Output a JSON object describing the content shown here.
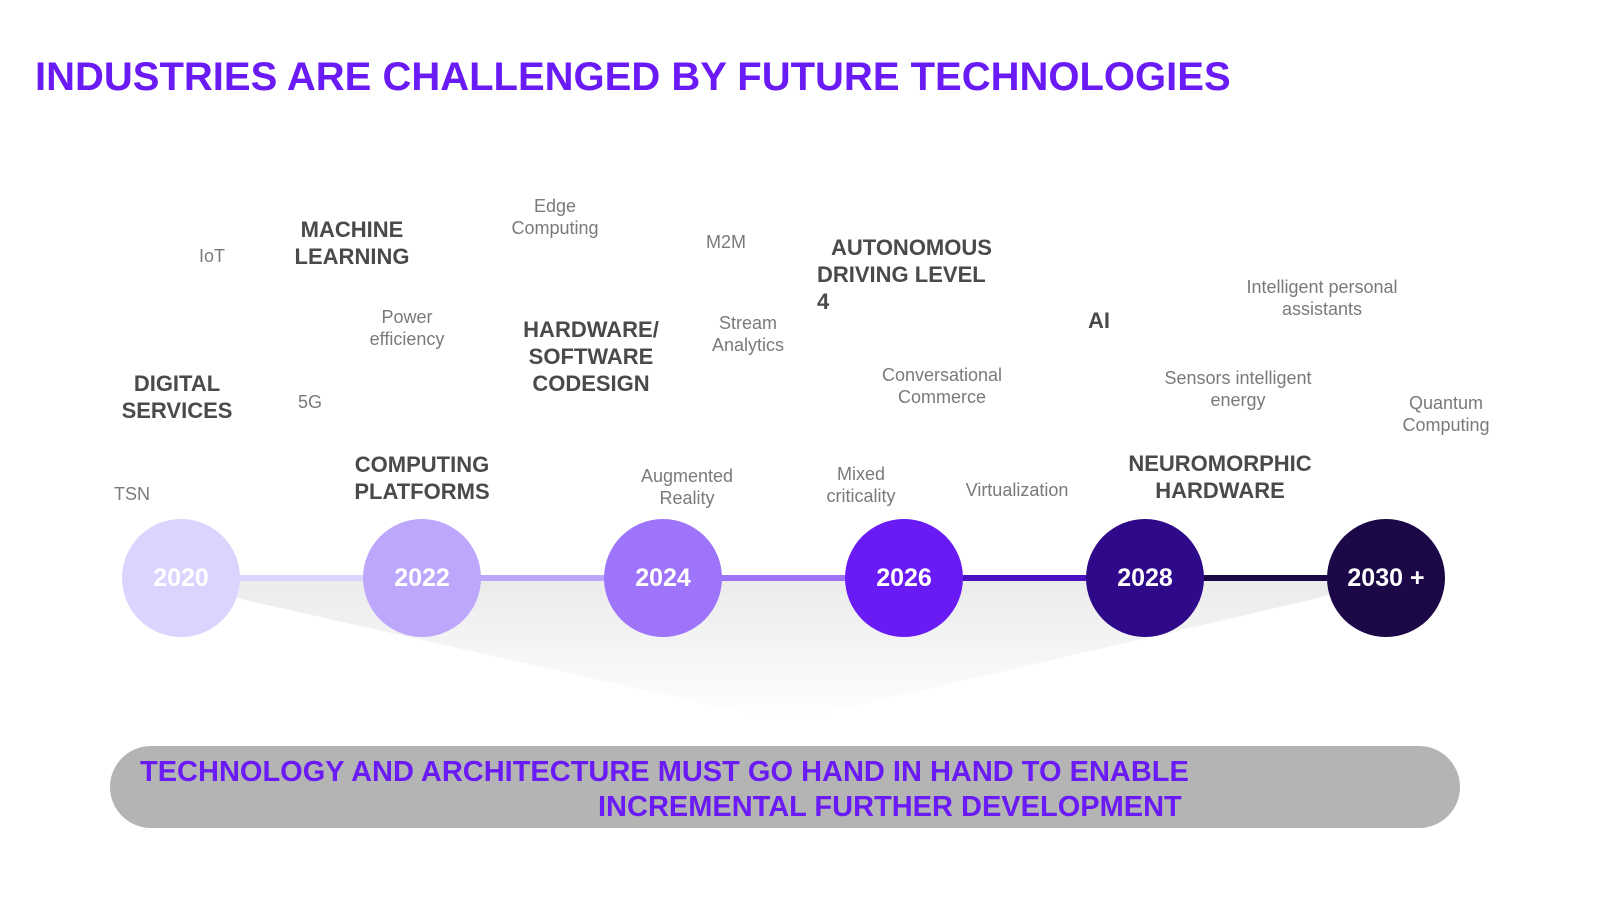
{
  "title": "INDUSTRIES ARE CHALLENGED BY FUTURE TECHNOLOGIES",
  "timeline": [
    {
      "year": "2020",
      "color": "#dcd3ff"
    },
    {
      "year": "2022",
      "color": "#bca7fc"
    },
    {
      "year": "2024",
      "color": "#9d74fa"
    },
    {
      "year": "2026",
      "color": "#6a1bf5"
    },
    {
      "year": "2028",
      "color": "#2e0a8a"
    },
    {
      "year": "2030 +",
      "color": "#1c0847"
    }
  ],
  "labels": {
    "iot": "IoT",
    "machine_learning": [
      "MACHINE",
      "LEARNING"
    ],
    "edge_computing": [
      "Edge",
      "Computing"
    ],
    "m2m": "M2M",
    "autonomous": [
      "AUTONOMOUS",
      "DRIVING LEVEL",
      "4"
    ],
    "intelligent_assistants": [
      "Intelligent personal",
      "assistants"
    ],
    "power_efficiency": [
      "Power",
      "efficiency"
    ],
    "hw_sw_codesign": [
      "HARDWARE/",
      "SOFTWARE",
      "CODESIGN"
    ],
    "stream_analytics": [
      "Stream",
      "Analytics"
    ],
    "ai": "AI",
    "digital_services": [
      "DIGITAL",
      "SERVICES"
    ],
    "five_g": "5G",
    "conversational_commerce": [
      "Conversational",
      "Commerce"
    ],
    "sensors": [
      "Sensors intelligent",
      "energy"
    ],
    "quantum": [
      "Quantum",
      "Computing"
    ],
    "tsn": "TSN",
    "computing_platforms": [
      "COMPUTING",
      "PLATFORMS"
    ],
    "augmented_reality": [
      "Augmented",
      "Reality"
    ],
    "mixed_criticality": [
      "Mixed",
      "criticality"
    ],
    "virtualization": "Virtualization",
    "neuromorphic": [
      "NEUROMORPHIC",
      "HARDWARE"
    ]
  },
  "banner": {
    "line1": "TECHNOLOGY AND ARCHITECTURE MUST GO HAND IN HAND TO ENABLE",
    "line2": "INCREMENTAL  FURTHER DEVELOPMENT",
    "background": "#b4b4b4",
    "text_color": "#6a1bf5"
  }
}
